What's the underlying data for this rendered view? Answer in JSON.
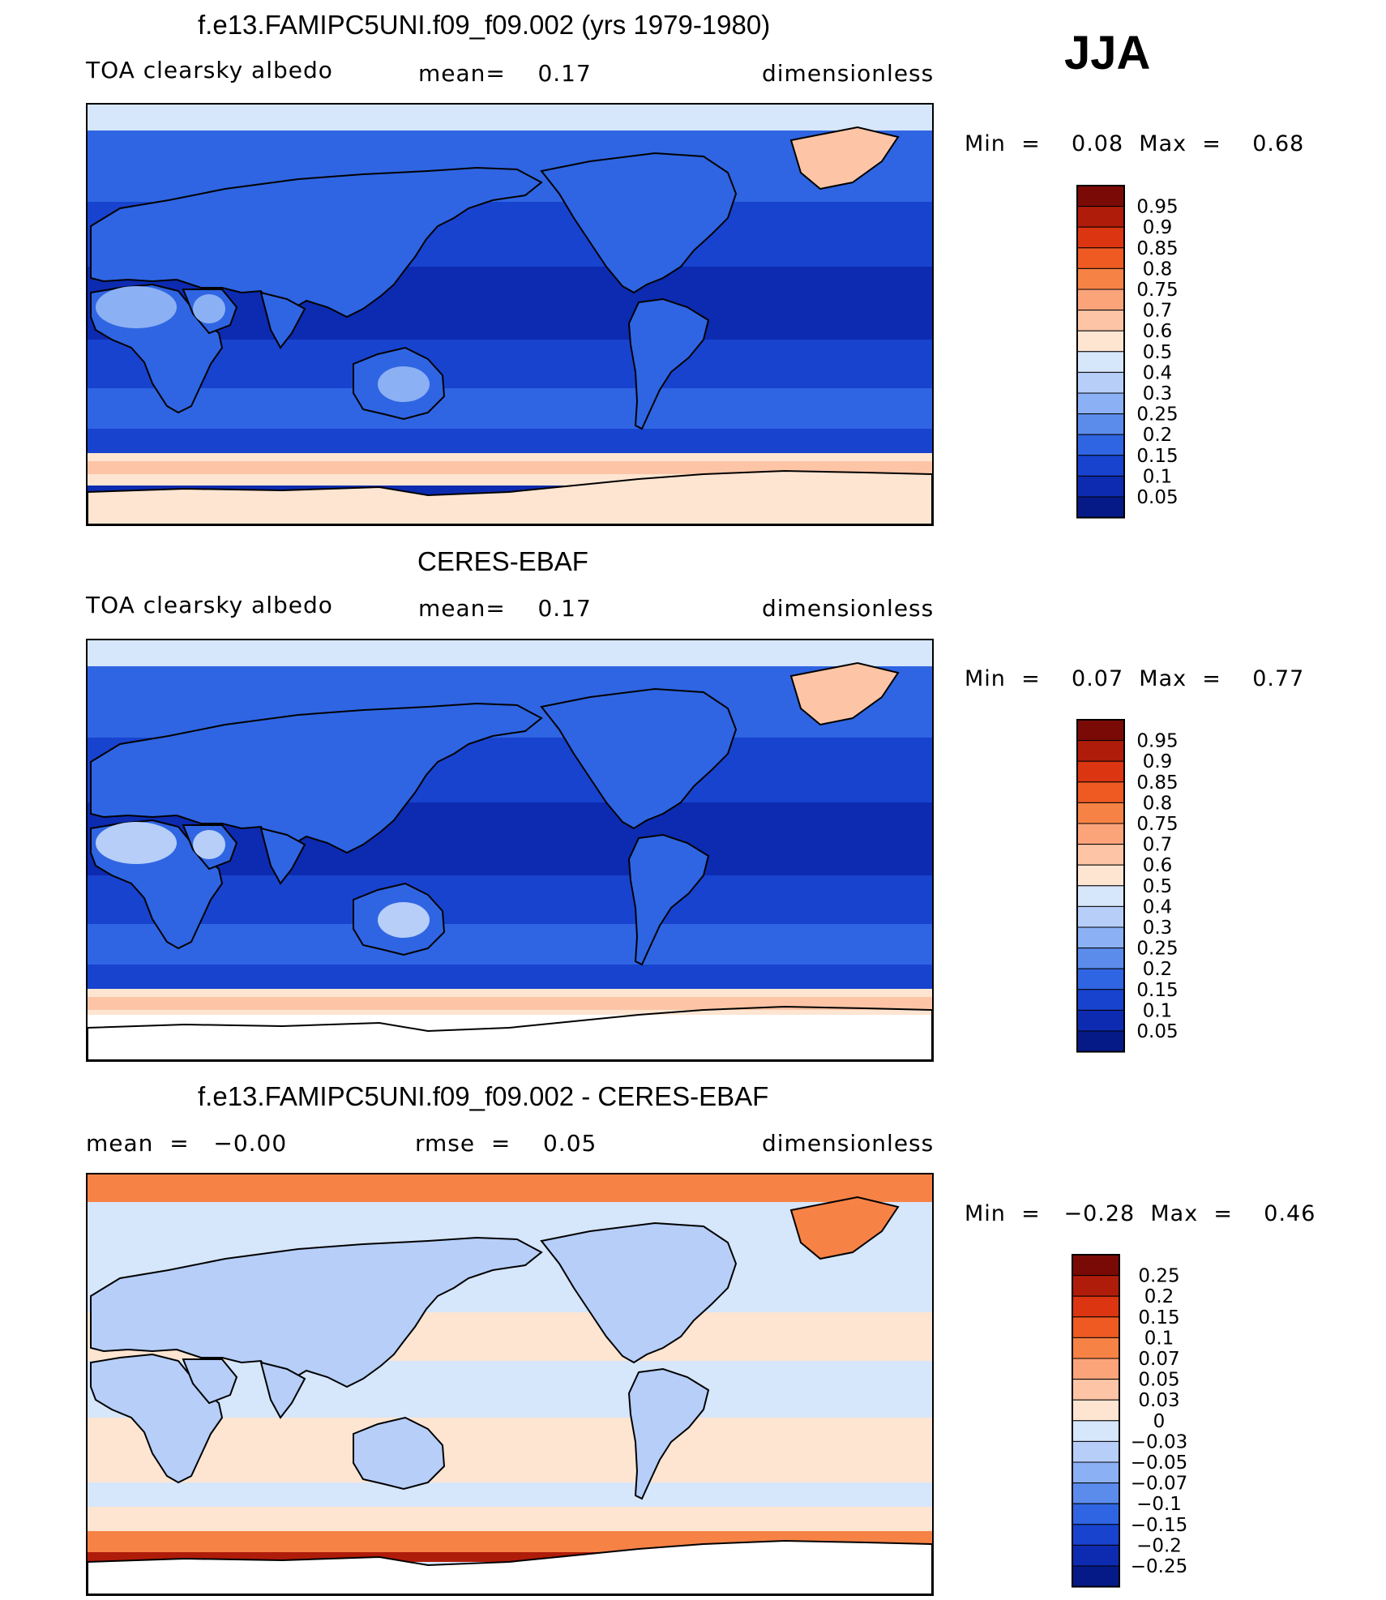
{
  "season": "JJA",
  "panels": [
    {
      "title": "f.e13.FAMIPC5UNI.f09_f09.002 (yrs 1979-1980)",
      "left_label": "TOA clearsky albedo",
      "center_label": "mean=    0.17",
      "right_label": "dimensionless",
      "min_max": "Min  =    0.08  Max  =    0.68"
    },
    {
      "title": "CERES-EBAF",
      "left_label": "TOA clearsky albedo",
      "center_label": "mean=    0.17",
      "right_label": "dimensionless",
      "min_max": "Min  =    0.07  Max  =    0.77"
    },
    {
      "title": "f.e13.FAMIPC5UNI.f09_f09.002 - CERES-EBAF",
      "left_label": "mean  =   −0.00",
      "center_label": "rmse  =    0.05",
      "right_label": "dimensionless",
      "min_max": "Min  =   −0.28  Max  =    0.46"
    }
  ],
  "chart_data": [
    {
      "type": "heatmap",
      "title": "f.e13.FAMIPC5UNI.f09_f09.002 (yrs 1979-1980)",
      "variable": "TOA clearsky albedo",
      "units": "dimensionless",
      "mean": 0.17,
      "min": 0.08,
      "max": 0.68,
      "colorbar_levels": [
        "0.95",
        "0.9",
        "0.85",
        "0.8",
        "0.75",
        "0.7",
        "0.6",
        "0.5",
        "0.4",
        "0.3",
        "0.25",
        "0.2",
        "0.15",
        "0.1",
        "0.05"
      ],
      "colorbar_colors": [
        "#7a0a05",
        "#b01c0a",
        "#dc3511",
        "#ee5a22",
        "#f78246",
        "#fba47a",
        "#fdc5a6",
        "#fde5d2",
        "#d6e6fb",
        "#b6cef8",
        "#8cb0f4",
        "#5b8cec",
        "#2f65e2",
        "#1843cf",
        "#0c2bb0",
        "#061a87"
      ],
      "surface_colors": {
        "ocean_tropics": "#0c2bb0",
        "ocean_subtropics": "#1843cf",
        "ocean_midlat": "#2f65e2",
        "land": "#2f65e2",
        "desert": "#8cb0f4",
        "arctic_ocean": "#d6e6fb",
        "ice": "#fdc5a6",
        "austral_sea_ice": "#fde5d2",
        "coast": "#000000"
      }
    },
    {
      "type": "heatmap",
      "title": "CERES-EBAF",
      "variable": "TOA clearsky albedo",
      "units": "dimensionless",
      "mean": 0.17,
      "min": 0.07,
      "max": 0.77,
      "colorbar_levels": [
        "0.95",
        "0.9",
        "0.85",
        "0.8",
        "0.75",
        "0.7",
        "0.6",
        "0.5",
        "0.4",
        "0.3",
        "0.25",
        "0.2",
        "0.15",
        "0.1",
        "0.05"
      ],
      "colorbar_colors": [
        "#7a0a05",
        "#b01c0a",
        "#dc3511",
        "#ee5a22",
        "#f78246",
        "#fba47a",
        "#fdc5a6",
        "#fde5d2",
        "#d6e6fb",
        "#b6cef8",
        "#8cb0f4",
        "#5b8cec",
        "#2f65e2",
        "#1843cf",
        "#0c2bb0",
        "#061a87"
      ],
      "surface_colors": {
        "ocean_tropics": "#0c2bb0",
        "ocean_subtropics": "#1843cf",
        "ocean_midlat": "#2f65e2",
        "land": "#2f65e2",
        "desert": "#b6cef8",
        "arctic_ocean": "#d6e6fb",
        "ice": "#fdc5a6",
        "austral_sea_ice": "#fde5d2",
        "missing": "#ffffff",
        "coast": "#000000"
      }
    },
    {
      "type": "heatmap",
      "title": "f.e13.FAMIPC5UNI.f09_f09.002 - CERES-EBAF",
      "units": "dimensionless",
      "mean": -0.0,
      "rmse": 0.05,
      "min": -0.28,
      "max": 0.46,
      "colorbar_levels": [
        "0.25",
        "0.2",
        "0.15",
        "0.1",
        "0.07",
        "0.05",
        "0.03",
        "0",
        "−0.03",
        "−0.05",
        "−0.07",
        "−0.1",
        "−0.15",
        "−0.2",
        "−0.25"
      ],
      "colorbar_colors": [
        "#7a0a05",
        "#b01c0a",
        "#dc3511",
        "#ee5a22",
        "#f78246",
        "#fba47a",
        "#fdc5a6",
        "#fde5d2",
        "#d6e6fb",
        "#b6cef8",
        "#8cb0f4",
        "#5b8cec",
        "#2f65e2",
        "#1843cf",
        "#0c2bb0",
        "#061a87"
      ],
      "surface_colors": {
        "ocean": "#d6e6fb",
        "positive_bias": "#fde5d2",
        "land": "#b6cef8",
        "arctic": "#f78246",
        "antarctic_band": "#b01c0a",
        "coast": "#000000"
      }
    }
  ]
}
